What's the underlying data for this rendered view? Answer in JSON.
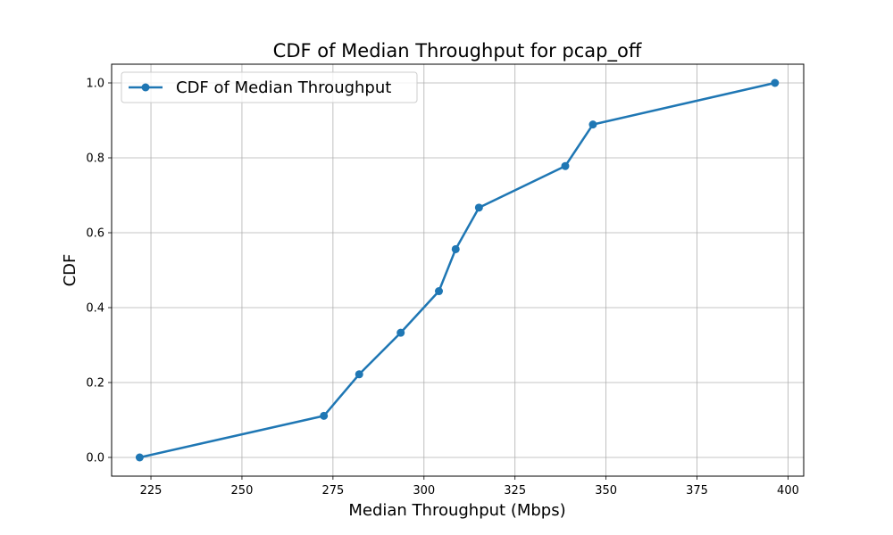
{
  "chart_data": {
    "type": "line",
    "title": "CDF of Median Throughput for pcap_off",
    "xlabel": "Median Throughput (Mbps)",
    "ylabel": "CDF",
    "xlim": [
      214.2,
      404.3
    ],
    "ylim": [
      -0.05,
      1.05
    ],
    "xticks": [
      225,
      250,
      275,
      300,
      325,
      350,
      375,
      400
    ],
    "xtick_labels": [
      "225",
      "250",
      "275",
      "300",
      "325",
      "350",
      "375",
      "400"
    ],
    "yticks": [
      0.0,
      0.2,
      0.4,
      0.6,
      0.8,
      1.0
    ],
    "ytick_labels": [
      "0.0",
      "0.2",
      "0.4",
      "0.6",
      "0.8",
      "1.0"
    ],
    "grid": true,
    "legend_position": "upper-left",
    "series": [
      {
        "name": "CDF of Median Throughput",
        "color": "#1f77b4",
        "marker": "circle",
        "x": [
          221.9,
          272.5,
          282.2,
          293.6,
          304.1,
          308.7,
          315.1,
          338.8,
          346.4,
          396.4
        ],
        "y": [
          0.0,
          0.111,
          0.222,
          0.333,
          0.444,
          0.556,
          0.667,
          0.778,
          0.889,
          1.0
        ]
      }
    ]
  }
}
